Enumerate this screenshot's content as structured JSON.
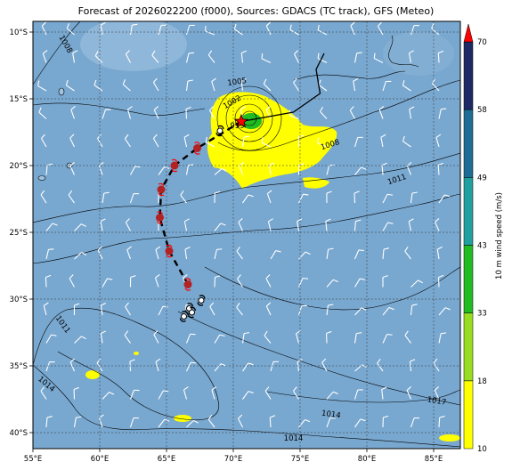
{
  "title": "Forecast of 2026022200 (f000), Sources: GDACS (TC track), GFS (Meteo)",
  "map": {
    "lon_range": [
      55,
      87
    ],
    "lat_range": [
      -41.2,
      -9.2
    ],
    "lat_ticks": [
      {
        "v": -10,
        "label": "10°S"
      },
      {
        "v": -15,
        "label": "15°S"
      },
      {
        "v": -20,
        "label": "20°S"
      },
      {
        "v": -25,
        "label": "25°S"
      },
      {
        "v": -30,
        "label": "30°S"
      },
      {
        "v": -35,
        "label": "35°S"
      },
      {
        "v": -40,
        "label": "40°S"
      }
    ],
    "lon_ticks": [
      {
        "v": 55,
        "label": "55°E"
      },
      {
        "v": 60,
        "label": "60°E"
      },
      {
        "v": 65,
        "label": "65°E"
      },
      {
        "v": 70,
        "label": "70°E"
      },
      {
        "v": 75,
        "label": "75°E"
      },
      {
        "v": 80,
        "label": "80°E"
      },
      {
        "v": 85,
        "label": "85°E"
      }
    ],
    "ocean_color": "#78a7cf",
    "contour_labels": [
      {
        "text": "1008",
        "lon": 57.3,
        "lat": -11.0,
        "rot": 60
      },
      {
        "text": "1005",
        "lon": 70.3,
        "lat": -13.9,
        "rot": -8
      },
      {
        "text": "1002",
        "lon": 70.0,
        "lat": -15.4,
        "rot": -30
      },
      {
        "text": "999",
        "lon": 70.3,
        "lat": -17.2,
        "rot": 0
      },
      {
        "text": "1008",
        "lon": 77.3,
        "lat": -18.6,
        "rot": -18
      },
      {
        "text": "1011",
        "lon": 82.3,
        "lat": -21.2,
        "rot": -18
      },
      {
        "text": "1011",
        "lon": 57.1,
        "lat": -32.0,
        "rot": 55
      },
      {
        "text": "1014",
        "lon": 55.9,
        "lat": -36.5,
        "rot": 40
      },
      {
        "text": "1014",
        "lon": 77.3,
        "lat": -38.8,
        "rot": 8
      },
      {
        "text": "1017",
        "lon": 85.2,
        "lat": -37.8,
        "rot": 10
      },
      {
        "text": "1014",
        "lon": 74.5,
        "lat": -40.6,
        "rot": 0
      }
    ],
    "track": {
      "past": [
        {
          "lon": 67.3,
          "lat": -18.7
        },
        {
          "lon": 65.6,
          "lat": -20.0
        },
        {
          "lon": 64.6,
          "lat": -21.8
        },
        {
          "lon": 64.5,
          "lat": -23.9
        },
        {
          "lon": 65.2,
          "lat": -26.4
        },
        {
          "lon": 66.6,
          "lat": -28.9
        }
      ],
      "current": {
        "lon": 70.6,
        "lat": -16.7
      },
      "forecast": [
        {
          "lon": 69.0,
          "lat": -17.4
        },
        {
          "lon": 66.7,
          "lat": -30.7
        },
        {
          "lon": 66.9,
          "lat": -31.0
        },
        {
          "lon": 67.6,
          "lat": -30.1
        },
        {
          "lon": 66.3,
          "lat": -31.3
        }
      ]
    }
  },
  "colorbar": {
    "label": "10 m wind speed (m/s)",
    "levels": [
      {
        "value": "10",
        "color": "#ffff00"
      },
      {
        "value": "18",
        "color": "#99dd22"
      },
      {
        "value": "33",
        "color": "#22bb22"
      },
      {
        "value": "43",
        "color": "#22a0a0"
      },
      {
        "value": "49",
        "color": "#1e6d94"
      },
      {
        "value": "58",
        "color": "#1e2a66"
      },
      {
        "value": "70",
        "color": "#ff0000"
      }
    ]
  }
}
